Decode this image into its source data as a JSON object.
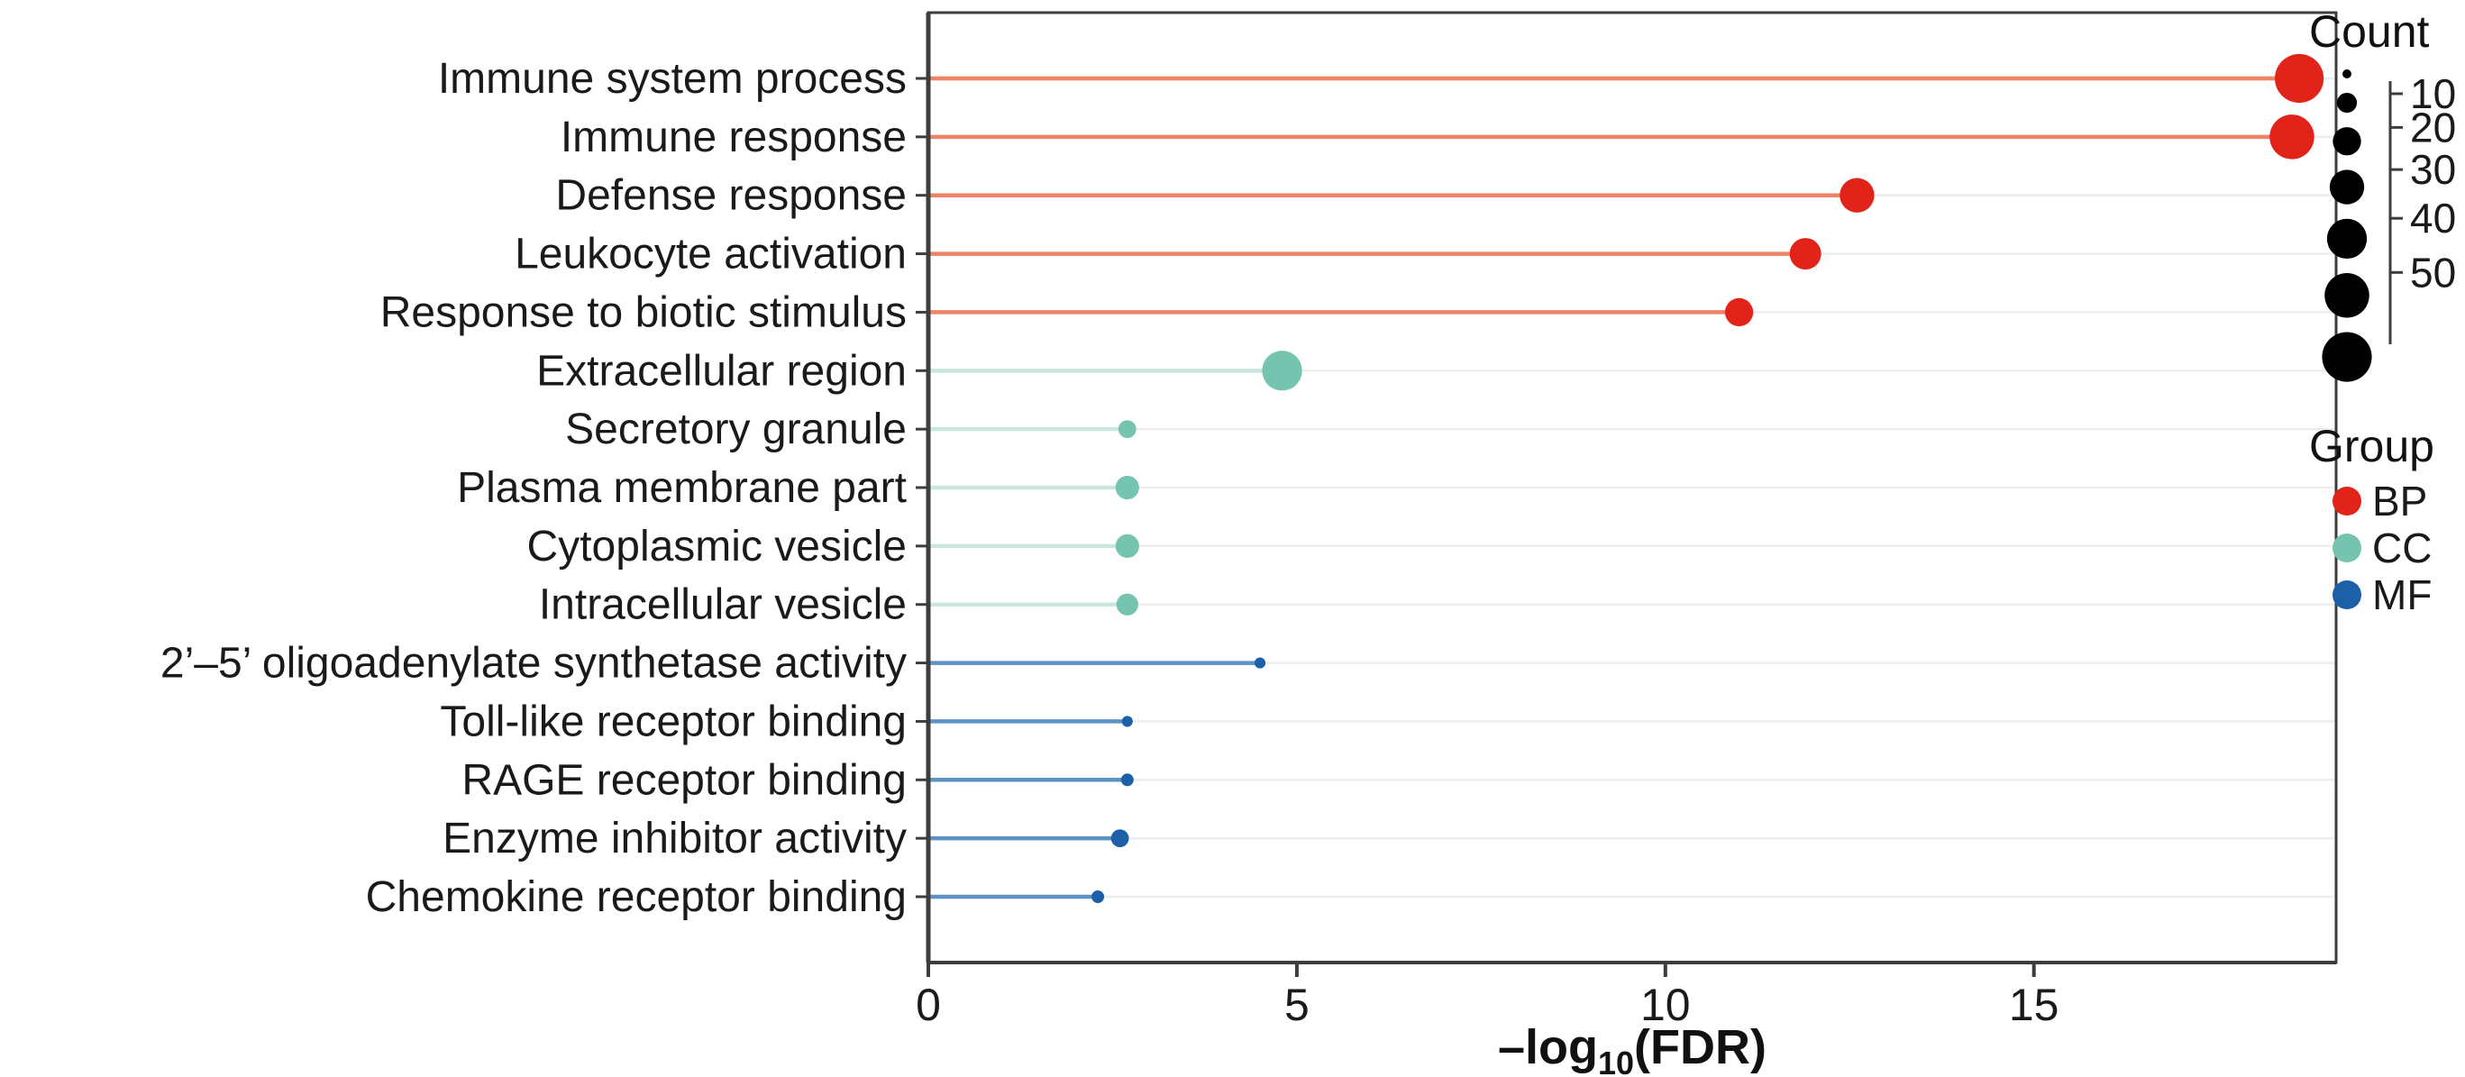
{
  "chart_data": {
    "type": "lollipop",
    "title": "",
    "xlabel": {
      "prefix": "–log",
      "sub": "10",
      "suffix": "(FDR)"
    },
    "x_ticks": [
      0,
      5,
      10,
      15
    ],
    "x_max": 19.1,
    "grid": true,
    "legend_position": "right",
    "groups": {
      "BP": {
        "dot": "#e2231a",
        "stem": "#f08266"
      },
      "CC": {
        "dot": "#74c4b0",
        "stem": "#c9e6df"
      },
      "MF": {
        "dot": "#1c60a7",
        "stem": "#5d93c4"
      }
    },
    "rows": [
      {
        "label": "Immune system process",
        "group": "BP",
        "x": 18.6,
        "count": 60
      },
      {
        "label": "Immune response",
        "group": "BP",
        "x": 18.5,
        "count": 50
      },
      {
        "label": "Defense response",
        "group": "BP",
        "x": 12.6,
        "count": 30
      },
      {
        "label": "Leukocyte activation",
        "group": "BP",
        "x": 11.9,
        "count": 25
      },
      {
        "label": "Response to biotic stimulus",
        "group": "BP",
        "x": 11.0,
        "count": 20
      },
      {
        "label": "Extracellular region",
        "group": "CC",
        "x": 4.8,
        "count": 40
      },
      {
        "label": "Secretory granule",
        "group": "CC",
        "x": 2.7,
        "count": 8
      },
      {
        "label": "Plasma membrane part",
        "group": "CC",
        "x": 2.7,
        "count": 14
      },
      {
        "label": "Cytoplasmic vesicle",
        "group": "CC",
        "x": 2.7,
        "count": 14
      },
      {
        "label": "Intracellular vesicle",
        "group": "CC",
        "x": 2.7,
        "count": 12
      },
      {
        "label": "2’–5’ oligoadenylate synthetase activity",
        "group": "MF",
        "x": 4.5,
        "count": 3
      },
      {
        "label": "Toll-like receptor binding",
        "group": "MF",
        "x": 2.7,
        "count": 3
      },
      {
        "label": "RAGE receptor binding",
        "group": "MF",
        "x": 2.7,
        "count": 4
      },
      {
        "label": "Enzyme inhibitor activity",
        "group": "MF",
        "x": 2.6,
        "count": 8
      },
      {
        "label": "Chemokine receptor binding",
        "group": "MF",
        "x": 2.3,
        "count": 4
      }
    ],
    "legend": {
      "count_title": "Count",
      "sizes": [
        10,
        20,
        30,
        40,
        50
      ],
      "group_title": "Group",
      "group_items": [
        "BP",
        "CC",
        "MF"
      ]
    }
  }
}
